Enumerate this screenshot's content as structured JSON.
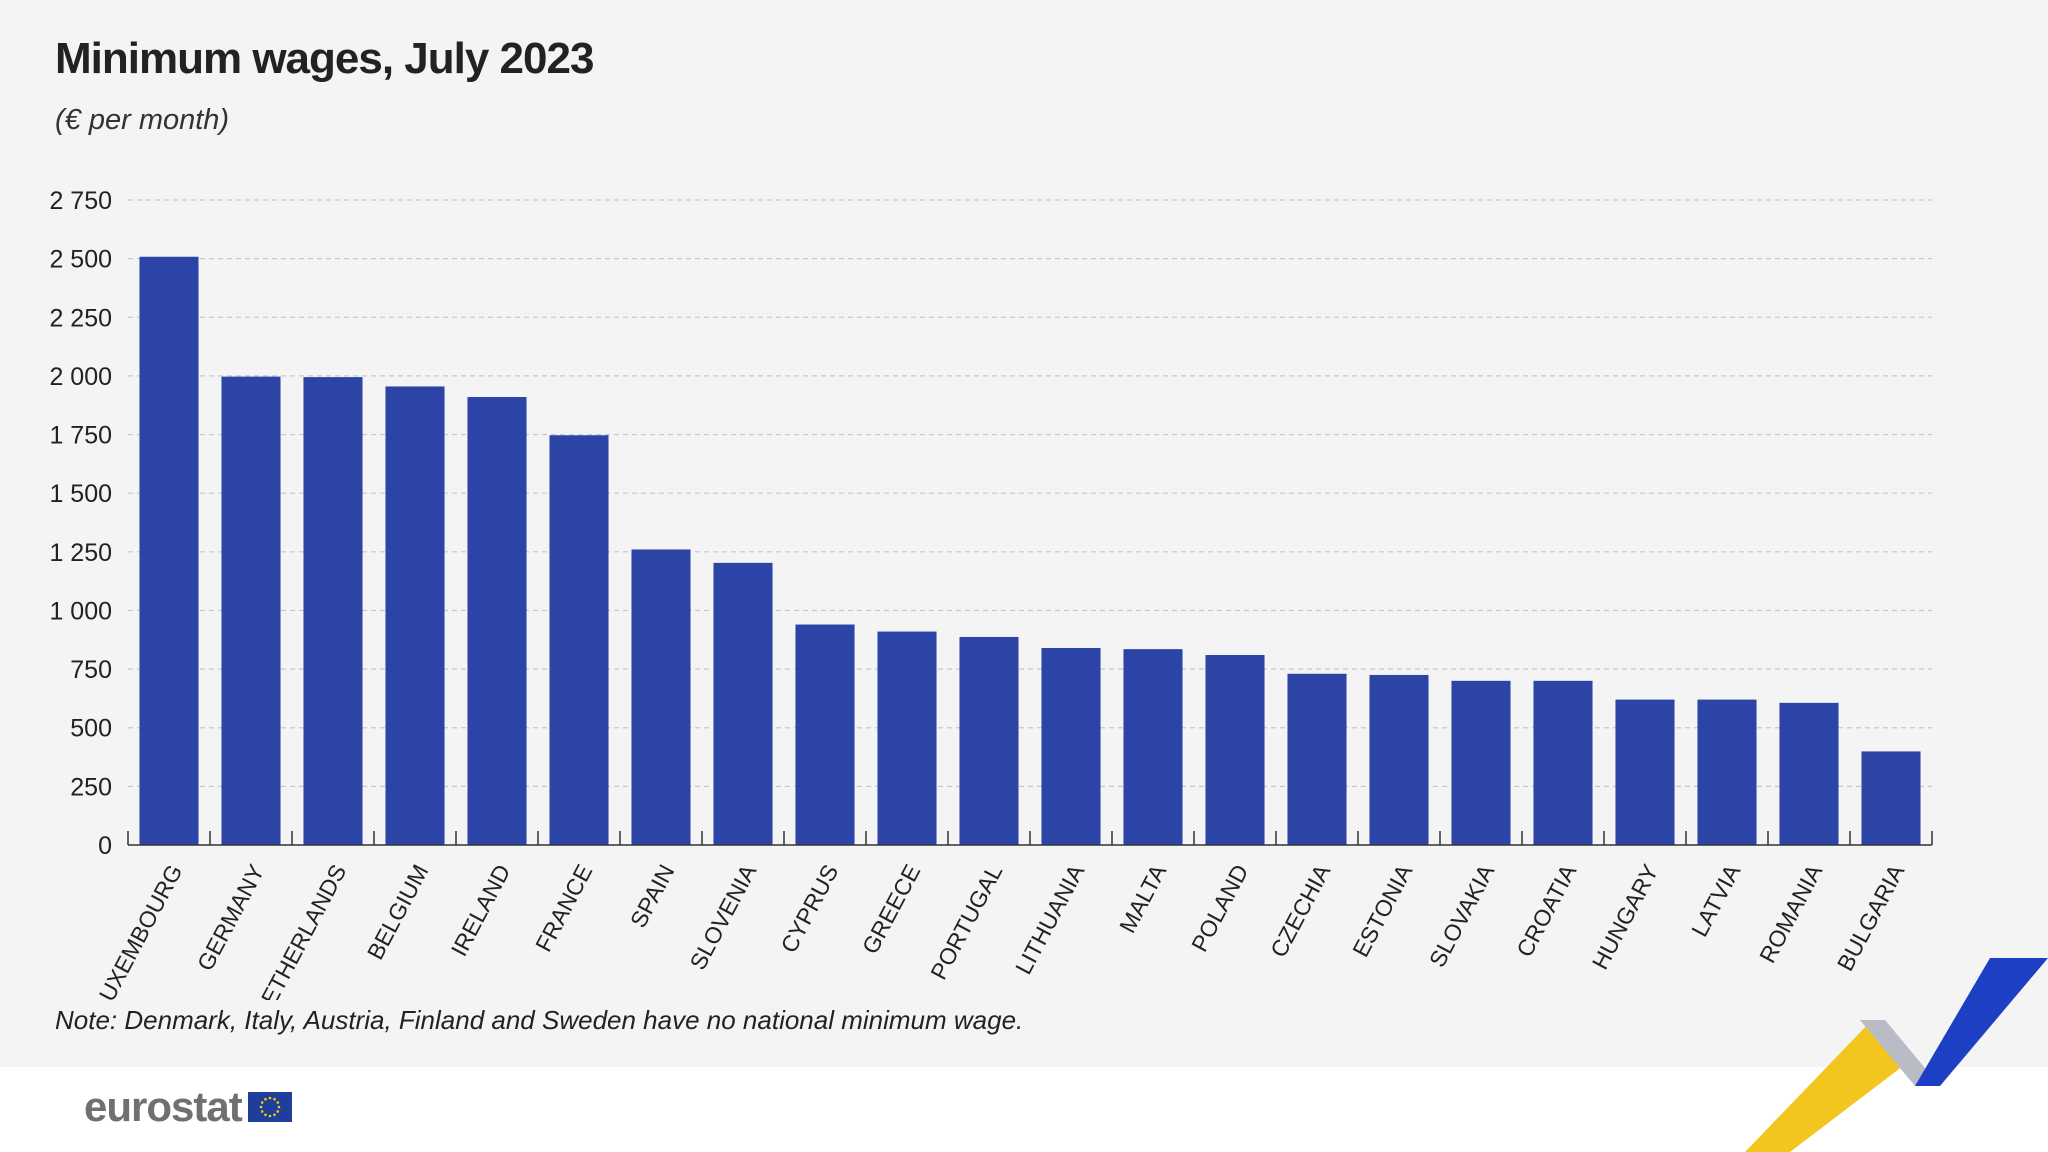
{
  "title": "Minimum wages, July 2023",
  "subtitle": "(€ per month)",
  "note": "Note: Denmark, Italy, Austria, Finland and Sweden have no national minimum wage.",
  "brand": {
    "name": "eurostat"
  },
  "colors": {
    "bar": "#2b44a6",
    "grid": "#c8c8c8",
    "axis": "#333333",
    "text": "#222222",
    "ribbon_yellow": "#f2c61f",
    "ribbon_grey": "#b9bcc4",
    "ribbon_blue": "#1d3fc4",
    "flag_blue": "#1f3d9a",
    "flag_star": "#f3d000"
  },
  "icons": {
    "flag": "eu-flag-icon",
    "ribbon": "eurostat-ribbon-icon"
  },
  "chart_data": {
    "type": "bar",
    "title": "Minimum wages, July 2023",
    "subtitle": "(€ per month)",
    "xlabel": "",
    "ylabel": "",
    "ylim": [
      0,
      2750
    ],
    "yticks": [
      0,
      250,
      500,
      750,
      1000,
      1250,
      1500,
      1750,
      2000,
      2250,
      2500,
      2750
    ],
    "ytick_labels": [
      "0",
      "250",
      "500",
      "750",
      "1 000",
      "1 250",
      "1 500",
      "1 750",
      "2 000",
      "2 250",
      "2 500",
      "2 750"
    ],
    "grid": true,
    "legend": "none",
    "categories": [
      "LUXEMBOURG",
      "GERMANY",
      "NETHERLANDS",
      "BELGIUM",
      "IRELAND",
      "FRANCE",
      "SPAIN",
      "SLOVENIA",
      "CYPRUS",
      "GREECE",
      "PORTUGAL",
      "LITHUANIA",
      "MALTA",
      "POLAND",
      "CZECHIA",
      "ESTONIA",
      "SLOVAKIA",
      "CROATIA",
      "HUNGARY",
      "LATVIA",
      "ROMANIA",
      "BULGARIA"
    ],
    "values": [
      2508,
      1997,
      1995,
      1955,
      1910,
      1747,
      1260,
      1203,
      940,
      910,
      887,
      840,
      835,
      810,
      730,
      725,
      700,
      700,
      620,
      620,
      606,
      399
    ]
  }
}
